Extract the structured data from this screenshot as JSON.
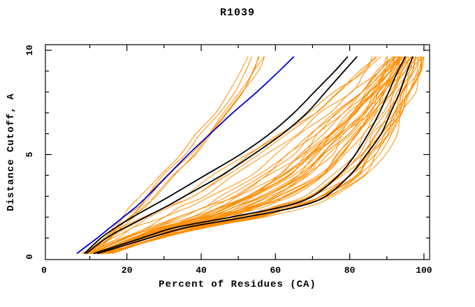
{
  "chart_data": {
    "type": "line",
    "title": "R1039",
    "xlabel": "Percent of Residues (CA)",
    "ylabel": "Distance Cutoff, A",
    "xlim": [
      0,
      100
    ],
    "ylim": [
      0,
      10
    ],
    "x_major_ticks": [
      0,
      20,
      40,
      60,
      80,
      100
    ],
    "x_minor_ticks": [
      10,
      30,
      50,
      70,
      90
    ],
    "y_major_ticks": [
      0,
      5,
      10
    ],
    "y_minor_ticks": [
      1,
      2,
      3,
      4,
      6,
      7,
      8,
      9
    ],
    "grid": false,
    "legend": "none",
    "frame": "box-with-mirrored-inward-ticks",
    "colors": {
      "orange": "#ff8c00",
      "blue": "#0000e0",
      "black": "#000000"
    },
    "cutoffs": [
      0.25,
      1,
      1.5,
      2,
      2.5,
      3,
      4,
      5,
      6,
      7,
      8,
      9,
      9.7
    ],
    "series": [
      {
        "name": "blue-model",
        "color": "#0000e0",
        "width": 1.8,
        "percents": [
          6.5,
          12,
          15.5,
          19,
          22.5,
          25.5,
          31,
          36.5,
          42.5,
          48.5,
          55,
          61,
          65
        ]
      },
      {
        "name": "black-model-1",
        "color": "#000000",
        "width": 1.8,
        "percents": [
          8.5,
          13,
          17,
          21.5,
          26.5,
          31.5,
          41,
          50.5,
          58.5,
          65,
          70.5,
          76,
          79.5
        ]
      },
      {
        "name": "black-model-2",
        "color": "#000000",
        "width": 1.8,
        "percents": [
          9,
          14.5,
          19.5,
          25,
          30.5,
          35.5,
          45.5,
          54,
          62,
          68.5,
          73.5,
          78.5,
          82
        ]
      },
      {
        "name": "black-model-3",
        "color": "#000000",
        "width": 1.8,
        "percents": [
          11,
          24,
          33,
          48,
          62,
          70,
          77,
          81.5,
          85,
          88,
          90.5,
          93,
          95
        ]
      },
      {
        "name": "black-model-4",
        "color": "#000000",
        "width": 1.8,
        "percents": [
          12,
          26,
          36,
          52,
          66,
          73.5,
          80,
          84.5,
          88.5,
          91,
          93.5,
          95.5,
          97
        ]
      }
    ],
    "orange_bundle": {
      "name": "server-models",
      "color": "#ff8c00",
      "width": 1,
      "count_main": 46,
      "envelope_left_percents": [
        8,
        13.5,
        17.5,
        22,
        27,
        31.5,
        40.5,
        49.5,
        58.5,
        67,
        75,
        82,
        86
      ],
      "envelope_right_percents": [
        15,
        30,
        42,
        57,
        68,
        76,
        85,
        89.5,
        92.5,
        95,
        97,
        99,
        100
      ],
      "outlier_curves_percents": [
        [
          9,
          14,
          16.5,
          19,
          21.5,
          24,
          29,
          34,
          39,
          43.5,
          47.5,
          51,
          53
        ],
        [
          9.5,
          14.5,
          17,
          19.5,
          22.5,
          25,
          30,
          35,
          40,
          44.5,
          48.5,
          52,
          54
        ],
        [
          10,
          15,
          17.5,
          20.5,
          23.5,
          26,
          31,
          36.5,
          41.5,
          46,
          50,
          53.5,
          55.5
        ],
        [
          10.5,
          15.5,
          18.5,
          21.5,
          24.5,
          27,
          32.5,
          38,
          42.5,
          47,
          51,
          54.5,
          56.5
        ],
        [
          11,
          16,
          19,
          22,
          25,
          28,
          33.5,
          38.5,
          43,
          47.5,
          51.5,
          55,
          57
        ],
        [
          10,
          15.5,
          18,
          21,
          24,
          26.5,
          31.5,
          37,
          42,
          46.5,
          50.5,
          54,
          56
        ]
      ]
    }
  }
}
